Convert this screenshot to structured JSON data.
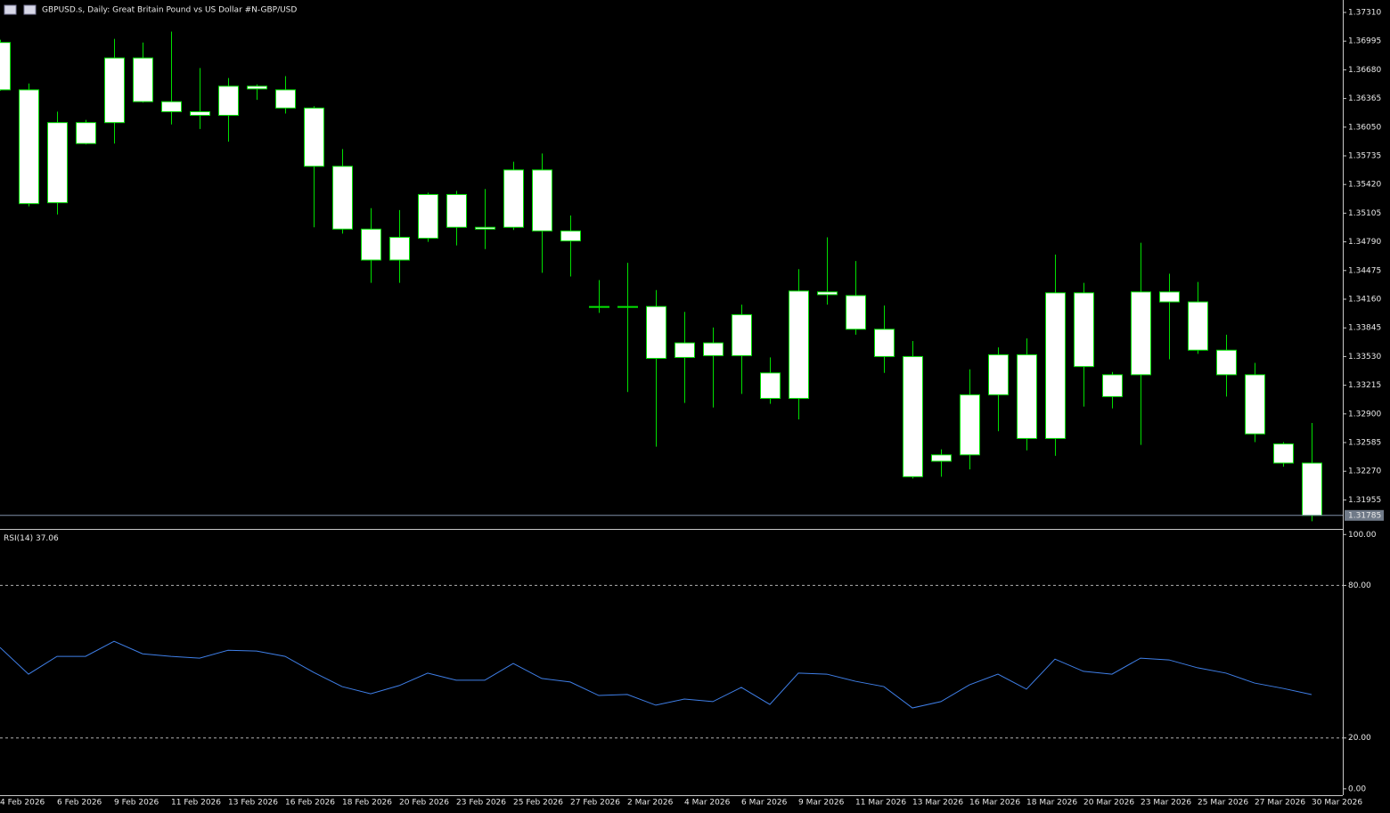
{
  "chart_data": [
    {
      "type": "candlestick",
      "title": "GBPUSD.s, Daily:  Great Britain Pound vs US Dollar #N-GBP/USD",
      "categories": [
        "4 Feb 2026",
        null,
        "6 Feb 2026",
        null,
        "9 Feb 2026",
        null,
        "11 Feb 2026",
        null,
        "13 Feb 2026",
        null,
        "16 Feb 2026",
        null,
        "18 Feb 2026",
        null,
        "20 Feb 2026",
        null,
        "23 Feb 2026",
        null,
        "25 Feb 2026",
        null,
        "27 Feb 2026",
        null,
        "2 Mar 2026",
        null,
        "4 Mar 2026",
        null,
        "6 Mar 2026",
        null,
        "9 Mar 2026",
        null,
        "11 Mar 2026",
        null,
        "13 Mar 2026",
        null,
        "16 Mar 2026",
        null,
        "18 Mar 2026",
        null,
        "20 Mar 2026",
        null,
        "23 Mar 2026",
        null,
        "25 Mar 2026",
        null,
        "27 Mar 2026",
        null,
        "30 Mar 2026"
      ],
      "open": [
        1.3698,
        1.3646,
        1.3522,
        1.3587,
        1.361,
        1.3681,
        1.3633,
        1.3622,
        1.3618,
        1.365,
        1.3646,
        1.3626,
        1.3562,
        1.3493,
        1.3459,
        1.3483,
        1.3531,
        1.3495,
        1.3495,
        1.3558,
        1.3491,
        1.3408,
        1.3408,
        1.3408,
        1.3352,
        1.3368,
        1.3354,
        1.3335,
        1.3307,
        1.3424,
        1.342,
        1.3383,
        1.3353,
        1.3238,
        1.3245,
        1.3311,
        1.3355,
        1.3263,
        1.3423,
        1.3309,
        1.3333,
        1.3424,
        1.3413,
        1.336,
        1.3333,
        1.3257,
        1.3236
      ],
      "high": [
        1.3701,
        1.3653,
        1.3622,
        1.3613,
        1.3702,
        1.3698,
        1.371,
        1.367,
        1.3659,
        1.3652,
        1.3661,
        1.3628,
        1.3581,
        1.3516,
        1.3514,
        1.3533,
        1.3535,
        1.3537,
        1.3567,
        1.3576,
        1.3508,
        1.3437,
        1.3456,
        1.3426,
        1.3402,
        1.3385,
        1.341,
        1.3352,
        1.3449,
        1.3484,
        1.3458,
        1.3409,
        1.337,
        1.3251,
        1.3339,
        1.3363,
        1.3373,
        1.3465,
        1.3434,
        1.3336,
        1.3478,
        1.3444,
        1.3435,
        1.3377,
        1.3346,
        1.3259,
        1.328
      ],
      "low": [
        1.3645,
        1.3518,
        1.3509,
        1.3586,
        1.3587,
        1.3632,
        1.3608,
        1.3603,
        1.3589,
        1.3635,
        1.362,
        1.3495,
        1.3488,
        1.3434,
        1.3434,
        1.3479,
        1.3475,
        1.3471,
        1.3492,
        1.3445,
        1.3441,
        1.3401,
        1.3314,
        1.3254,
        1.3302,
        1.3297,
        1.3312,
        1.3301,
        1.3284,
        1.341,
        1.3377,
        1.3335,
        1.3219,
        1.3221,
        1.3229,
        1.3271,
        1.325,
        1.3244,
        1.3298,
        1.3296,
        1.3256,
        1.335,
        1.3356,
        1.3309,
        1.3259,
        1.3232,
        1.3172
      ],
      "close": [
        1.3646,
        1.3521,
        1.361,
        1.361,
        1.3681,
        1.3633,
        1.3622,
        1.3618,
        1.365,
        1.3647,
        1.3626,
        1.3562,
        1.3493,
        1.3459,
        1.3484,
        1.3531,
        1.3495,
        1.3493,
        1.3558,
        1.3491,
        1.348,
        1.3407,
        1.3407,
        1.3351,
        1.3368,
        1.3354,
        1.3399,
        1.3307,
        1.3425,
        1.3421,
        1.3383,
        1.3353,
        1.3221,
        1.3245,
        1.3311,
        1.3355,
        1.3263,
        1.3423,
        1.3342,
        1.3333,
        1.3424,
        1.3413,
        1.336,
        1.3333,
        1.3268,
        1.3236,
        1.31785
      ],
      "last_price": 1.31785,
      "body_color": "#ffffff",
      "wick_color": "#00e000",
      "ylim": [
        1.31646,
        1.37437
      ],
      "yticks": [
        {
          "value": 1.3731,
          "label": "1.37310"
        },
        1.36995,
        {
          "value": 1.3668,
          "label": "1.36680"
        },
        1.36365,
        {
          "value": 1.3605,
          "label": "1.36050"
        },
        1.35735,
        {
          "value": 1.3542,
          "label": "1.35420"
        },
        1.35105,
        {
          "value": 1.3479,
          "label": "1.34790"
        },
        1.34475,
        {
          "value": 1.3416,
          "label": "1.34160"
        },
        1.33845,
        {
          "value": 1.3353,
          "label": "1.33530"
        },
        1.33215,
        {
          "value": 1.329,
          "label": "1.32900"
        },
        1.32585,
        {
          "value": 1.3227,
          "label": "1.32270"
        },
        1.31955
      ]
    },
    {
      "type": "line",
      "title": "RSI(14)",
      "values": [
        55.6,
        45.1,
        52.1,
        52.1,
        58.0,
        53.1,
        52.1,
        51.4,
        54.5,
        54.2,
        52.1,
        45.8,
        40.2,
        37.4,
        40.6,
        45.5,
        42.7,
        42.7,
        49.3,
        43.4,
        42.0,
        36.7,
        37.1,
        32.9,
        35.3,
        34.3,
        39.9,
        33.2,
        45.5,
        45.1,
        42.3,
        40.2,
        31.8,
        34.3,
        40.9,
        45.1,
        39.2,
        51.0,
        46.2,
        45.1,
        51.4,
        50.7,
        47.6,
        45.5,
        41.6,
        39.5,
        37.06
      ],
      "color": "#3f7fe8",
      "ylim": [
        -2.5,
        101.5
      ],
      "yticks": [
        {
          "value": 100,
          "label": "100.00"
        },
        {
          "value": 80,
          "label": "80.00"
        },
        {
          "value": 20,
          "label": "20.00"
        },
        {
          "value": 0,
          "label": "0.00"
        }
      ],
      "levels": [
        80,
        20
      ]
    }
  ]
}
